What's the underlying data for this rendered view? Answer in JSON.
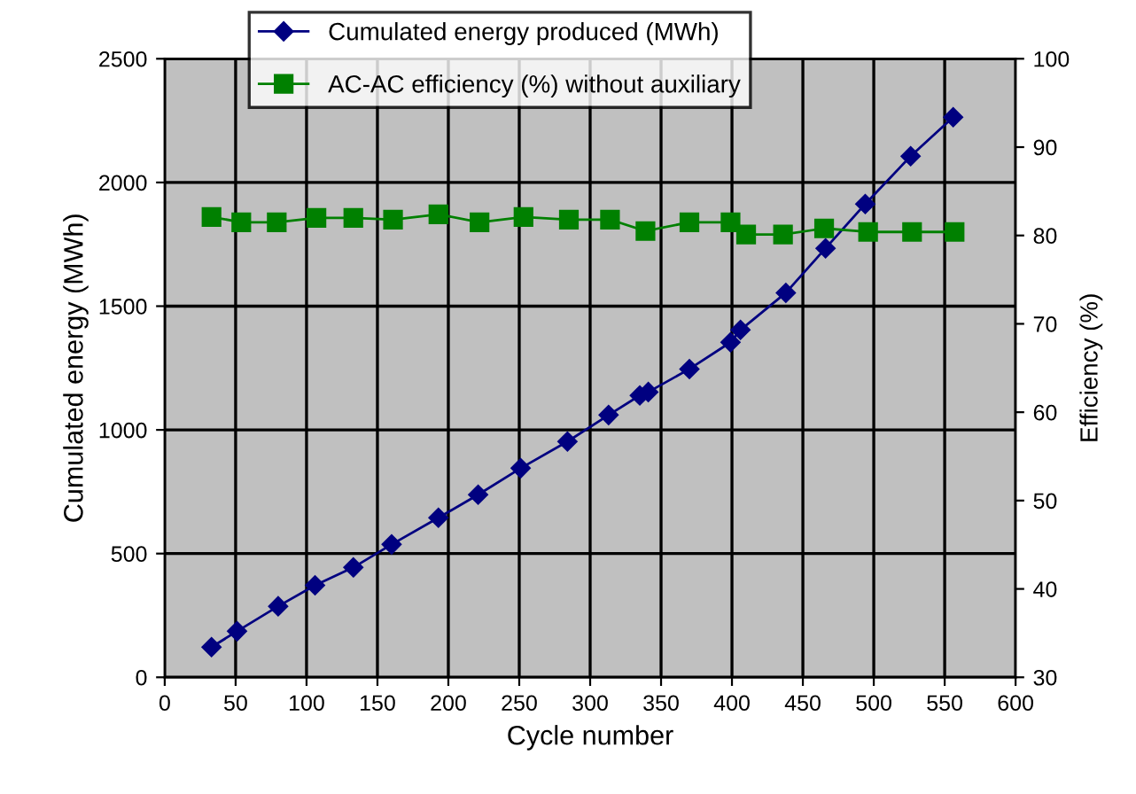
{
  "chart_data": {
    "type": "line",
    "xlabel": "Cycle number",
    "ylabel": "Cumulated energy (MWh)",
    "y2label": "Efficiency (%)",
    "xlim": [
      0,
      600
    ],
    "xticks": [
      0,
      50,
      100,
      150,
      200,
      250,
      300,
      350,
      400,
      450,
      500,
      550,
      600
    ],
    "ylim": [
      0,
      2500
    ],
    "yticks": [
      0,
      500,
      1000,
      1500,
      2000,
      2500
    ],
    "y2lim": [
      30,
      100
    ],
    "y2ticks": [
      30,
      40,
      50,
      60,
      70,
      80,
      90,
      100
    ],
    "grid": true,
    "legend": "top",
    "series": [
      {
        "name": "Cumulated energy produced (MWh)",
        "color": "#000080",
        "marker": "diamond",
        "x": [
          33,
          51,
          80,
          106,
          133,
          160,
          193,
          221,
          251,
          284,
          313,
          335,
          341,
          370,
          399,
          406,
          438,
          466,
          494,
          526,
          556
        ],
        "values": [
          122,
          186,
          287,
          372,
          444,
          537,
          645,
          738,
          845,
          953,
          1060,
          1139,
          1153,
          1246,
          1354,
          1404,
          1554,
          1734,
          1913,
          2106,
          2264
        ]
      },
      {
        "name": "AC-AC efficiency (%) without auxiliary",
        "color": "#008000",
        "marker": "square",
        "axis": "y2",
        "x": [
          33,
          54,
          79,
          107,
          133,
          161,
          193,
          222,
          253,
          285,
          314,
          339,
          370,
          399,
          410,
          436,
          465,
          496,
          527,
          557
        ],
        "values": [
          82.1,
          81.5,
          81.5,
          82.0,
          82.0,
          81.8,
          82.4,
          81.5,
          82.1,
          81.8,
          81.8,
          80.5,
          81.5,
          81.5,
          80.1,
          80.1,
          80.8,
          80.4,
          80.4,
          80.4
        ]
      }
    ]
  }
}
